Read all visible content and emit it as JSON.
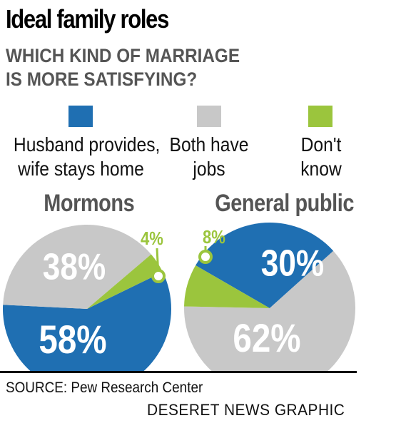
{
  "title": "Ideal family roles",
  "subtitle_line1": "WHICH KIND OF MARRIAGE",
  "subtitle_line2": "IS MORE SATISFYING?",
  "legend": [
    {
      "line1": "Husband provides,",
      "line2": "wife stays home",
      "color": "#1f6fb2"
    },
    {
      "line1": "Both have",
      "line2": "jobs",
      "color": "#c8c8c8"
    },
    {
      "line1": "Don't",
      "line2": "know",
      "color": "#9bc53d"
    }
  ],
  "source": "SOURCE: Pew Research Center",
  "credit": "DESERET NEWS GRAPHIC",
  "chart_data": [
    {
      "type": "pie",
      "title": "Mormons",
      "categories": [
        "Husband provides, wife stays home",
        "Both have jobs",
        "Don't know"
      ],
      "values": [
        58,
        38,
        4
      ],
      "labels": [
        "58%",
        "38%",
        "4%"
      ],
      "colors": [
        "#1f6fb2",
        "#c8c8c8",
        "#9bc53d"
      ]
    },
    {
      "type": "pie",
      "title": "General public",
      "categories": [
        "Husband provides, wife stays home",
        "Both have jobs",
        "Don't know"
      ],
      "values": [
        30,
        62,
        8
      ],
      "labels": [
        "30%",
        "62%",
        "8%"
      ],
      "colors": [
        "#1f6fb2",
        "#c8c8c8",
        "#9bc53d"
      ]
    }
  ]
}
